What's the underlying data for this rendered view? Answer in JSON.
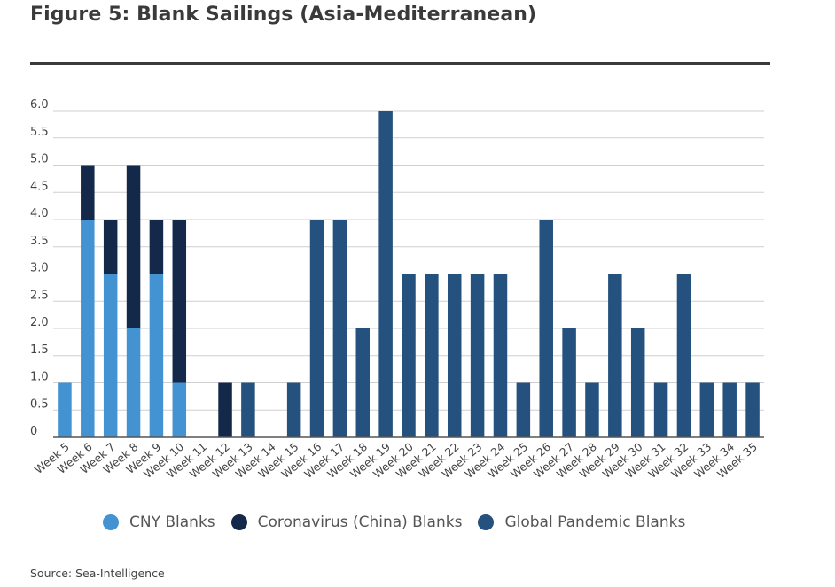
{
  "title": "Figure 5: Blank Sailings (Asia-Mediterranean)",
  "source": "Source: Sea-Intelligence",
  "colors": {
    "cny": "#4393d3",
    "coronavirus": "#14294a",
    "pandemic": "#24517e",
    "grid": "#cfcfcf",
    "axis": "#555555"
  },
  "chart_data": {
    "type": "bar",
    "stacked": true,
    "categories": [
      "Week 5",
      "Week 6",
      "Week 7",
      "Week 8",
      "Week 9",
      "Week 10",
      "Week 11",
      "Week 12",
      "Week 13",
      "Week 14",
      "Week 15",
      "Week 16",
      "Week 17",
      "Week 18",
      "Week 19",
      "Week 20",
      "Week 21",
      "Week 22",
      "Week 23",
      "Week 24",
      "Week 25",
      "Week 26",
      "Week 27",
      "Week 28",
      "Week 29",
      "Week 30",
      "Week 31",
      "Week 32",
      "Week 33",
      "Week 34",
      "Week 35"
    ],
    "series": [
      {
        "name": "CNY Blanks",
        "color_key": "cny",
        "values": [
          1,
          4,
          3,
          2,
          3,
          1,
          0,
          0,
          0,
          0,
          0,
          0,
          0,
          0,
          0,
          0,
          0,
          0,
          0,
          0,
          0,
          0,
          0,
          0,
          0,
          0,
          0,
          0,
          0,
          0,
          0
        ]
      },
      {
        "name": "Coronavirus (China) Blanks",
        "color_key": "coronavirus",
        "values": [
          0,
          1,
          1,
          3,
          1,
          3,
          0,
          1,
          0,
          0,
          0,
          0,
          0,
          0,
          0,
          0,
          0,
          0,
          0,
          0,
          0,
          0,
          0,
          0,
          0,
          0,
          0,
          0,
          0,
          0,
          0
        ]
      },
      {
        "name": "Global Pandemic Blanks",
        "color_key": "pandemic",
        "values": [
          0,
          0,
          0,
          0,
          0,
          0,
          0,
          0,
          1,
          0,
          1,
          4,
          4,
          2,
          6,
          3,
          3,
          3,
          3,
          3,
          1,
          4,
          2,
          1,
          3,
          2,
          1,
          3,
          1,
          1,
          1
        ]
      }
    ],
    "yticks": [
      "0",
      "0.5",
      "1.0",
      "1.5",
      "2.0",
      "2.5",
      "3.0",
      "3.5",
      "4.0",
      "4.5",
      "5.0",
      "5.5",
      "6.0"
    ],
    "ylim": [
      0,
      6
    ],
    "grid": true,
    "legend_position": "bottom"
  }
}
